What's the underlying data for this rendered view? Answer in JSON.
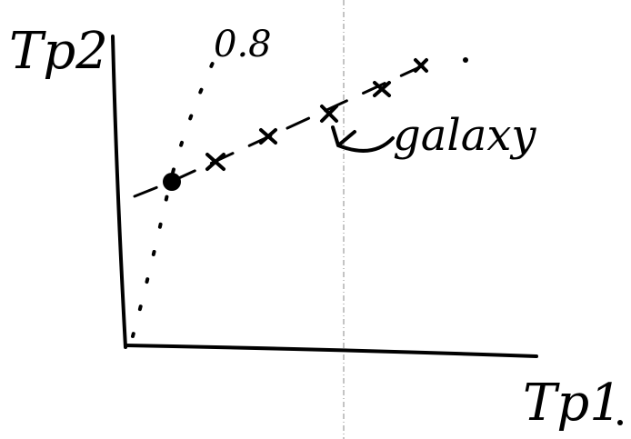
{
  "diagram": {
    "y_axis_label": "Tp2",
    "x_axis_label": "Tp1",
    "curve_label": "0.8",
    "point_label": "galaxy"
  }
}
